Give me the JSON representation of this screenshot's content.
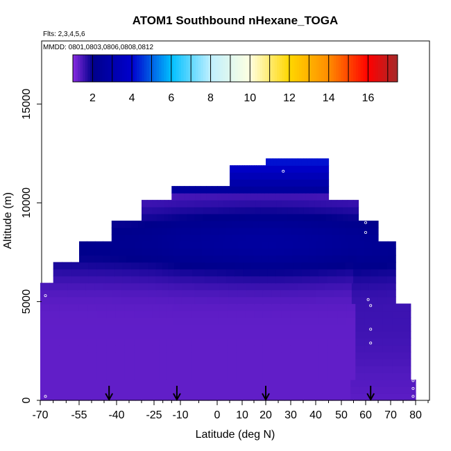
{
  "chart_data": {
    "type": "heatmap",
    "title": "ATOM1 Southbound nHexane_TOGA",
    "flights_note": "Flts: 2,3,4,5,6",
    "dates_note": "MMDD: 0801,0803,0806,0808,0812",
    "xlabel": "Latitude (deg N)",
    "ylabel": "Altitude (m)",
    "xlim": [
      -70,
      85
    ],
    "ylim": [
      0,
      17500
    ],
    "x_ticks": [
      -70,
      -55,
      -40,
      -25,
      -10,
      0,
      10,
      20,
      30,
      40,
      50,
      60,
      70,
      80
    ],
    "y_ticks": [
      0,
      5000,
      10000,
      15000
    ],
    "colorbar": {
      "min": 1,
      "max": 17.5,
      "ticks": [
        2,
        4,
        6,
        8,
        10,
        12,
        14,
        16
      ],
      "stops": [
        {
          "v": 1,
          "c": "#8a2be2"
        },
        {
          "v": 2,
          "c": "#00008b"
        },
        {
          "v": 4,
          "c": "#0000cd"
        },
        {
          "v": 6,
          "c": "#00bfff"
        },
        {
          "v": 8,
          "c": "#bfefff"
        },
        {
          "v": 10,
          "c": "#ffffe0"
        },
        {
          "v": 12,
          "c": "#ffd700"
        },
        {
          "v": 14,
          "c": "#ff8c00"
        },
        {
          "v": 16,
          "c": "#ff0000"
        },
        {
          "v": 17.5,
          "c": "#a52a2a"
        }
      ]
    },
    "profile": [
      {
        "alt": 1000,
        "lat_max": 80
      },
      {
        "alt": 5000,
        "lat_max": 78
      },
      {
        "alt": 8000,
        "lat_max": 72
      },
      {
        "alt": 9000,
        "lat_max": 65
      },
      {
        "alt": 10000,
        "lat_max": 57
      },
      {
        "alt": 11000,
        "lat_max": 45
      }
    ],
    "curtain": {
      "lat_min": -70,
      "envelope": [
        {
          "alt": 5500,
          "lat_min": -70
        },
        {
          "alt": 6000,
          "lat_min": -65
        },
        {
          "alt": 7000,
          "lat_min": -55
        },
        {
          "alt": 8000,
          "lat_min": -42
        },
        {
          "alt": 9000,
          "lat_min": -30
        },
        {
          "alt": 10000,
          "lat_min": -15
        },
        {
          "alt": 11000,
          "lat_min": 5
        },
        {
          "alt": 12000,
          "lat_min": 20
        }
      ]
    },
    "arrows_lat": [
      -43,
      -12,
      20,
      62
    ],
    "sample_points": [
      {
        "lat": -68,
        "alt": 5300
      },
      {
        "lat": -68,
        "alt": 200
      },
      {
        "lat": 27,
        "alt": 11600
      },
      {
        "lat": 60,
        "alt": 9000
      },
      {
        "lat": 60,
        "alt": 8500
      },
      {
        "lat": 61,
        "alt": 5100
      },
      {
        "lat": 62,
        "alt": 4800
      },
      {
        "lat": 62,
        "alt": 3600
      },
      {
        "lat": 62,
        "alt": 2900
      },
      {
        "lat": 77,
        "alt": 7600
      },
      {
        "lat": 77,
        "alt": 6500
      },
      {
        "lat": 79,
        "alt": 1000
      },
      {
        "lat": 79,
        "alt": 600
      },
      {
        "lat": 79,
        "alt": 200
      }
    ]
  }
}
